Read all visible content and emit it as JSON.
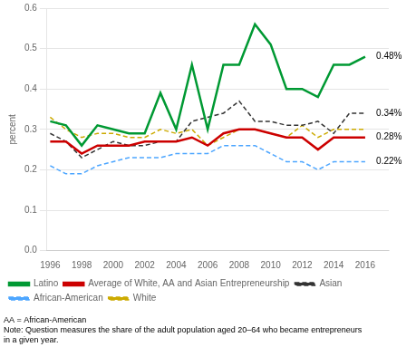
{
  "chart_data": {
    "type": "line",
    "ylabel": "percent",
    "x": [
      1996,
      1997,
      1998,
      1999,
      2000,
      2001,
      2002,
      2003,
      2004,
      2005,
      2006,
      2007,
      2008,
      2009,
      2010,
      2011,
      2012,
      2013,
      2014,
      2015,
      2016,
      2017
    ],
    "series": [
      {
        "name": "Latino",
        "color": "#009933",
        "line_style": "solid",
        "values": [
          0.32,
          0.31,
          0.26,
          0.31,
          0.3,
          0.29,
          0.29,
          0.39,
          0.3,
          0.46,
          0.3,
          0.46,
          0.46,
          0.56,
          0.51,
          0.4,
          0.4,
          0.38,
          0.46,
          0.46,
          0.48,
          null
        ]
      },
      {
        "name": "Average of White, AA and Asian Entrepreneurship",
        "color": "#cc0000",
        "line_style": "solid",
        "values": [
          0.27,
          0.27,
          0.24,
          0.26,
          0.26,
          0.26,
          0.27,
          0.27,
          0.27,
          0.28,
          0.26,
          0.29,
          0.3,
          0.3,
          0.29,
          0.28,
          0.28,
          0.25,
          0.28,
          0.28,
          0.28,
          null
        ]
      },
      {
        "name": "Asian",
        "color": "#333333",
        "line_style": "dashed",
        "values": [
          0.29,
          0.27,
          0.23,
          0.25,
          0.27,
          0.26,
          0.26,
          0.27,
          0.27,
          0.32,
          0.33,
          0.34,
          0.37,
          0.32,
          0.32,
          0.31,
          0.31,
          0.32,
          0.29,
          0.34,
          0.34,
          null
        ]
      },
      {
        "name": "African-American",
        "color": "#4da6ff",
        "line_style": "dashed",
        "values": [
          0.21,
          0.19,
          0.19,
          0.21,
          0.22,
          0.23,
          0.23,
          0.23,
          0.24,
          0.24,
          0.24,
          0.26,
          0.26,
          0.26,
          0.24,
          0.22,
          0.22,
          0.2,
          0.22,
          0.22,
          0.22,
          null
        ]
      },
      {
        "name": "White",
        "color": "#ccaa00",
        "line_style": "dashed",
        "values": [
          0.33,
          0.3,
          0.28,
          0.29,
          0.29,
          0.28,
          0.28,
          0.3,
          0.29,
          0.3,
          0.26,
          0.28,
          0.3,
          0.3,
          0.29,
          0.28,
          0.31,
          0.28,
          0.3,
          0.3,
          0.3,
          null
        ]
      }
    ],
    "xlim": [
      1995.8,
      2017.5
    ],
    "xticks": [
      1996,
      1998,
      2000,
      2002,
      2004,
      2006,
      2008,
      2010,
      2012,
      2014,
      2016
    ],
    "ylim": [
      0,
      0.6
    ],
    "yticks": [
      {
        "value": 0,
        "label": "0.0"
      },
      0.1,
      0.2,
      0.3,
      0.4,
      0.5,
      0.6
    ],
    "grid": "y",
    "legend": "bottom",
    "annotations": [
      {
        "text": "0.48%",
        "x": 2016.7,
        "y": 0.48
      },
      {
        "text": "0.34%",
        "x": 2016.7,
        "y": 0.34
      },
      {
        "text": "0.28%",
        "x": 2016.7,
        "y": 0.28
      },
      {
        "text": "0.22%",
        "x": 2016.7,
        "y": 0.22
      }
    ],
    "notes": [
      "AA = African-American",
      "Note: Question measures the share of the adult population aged 20–64 who became entrepreneurs",
      "in a given year."
    ]
  }
}
